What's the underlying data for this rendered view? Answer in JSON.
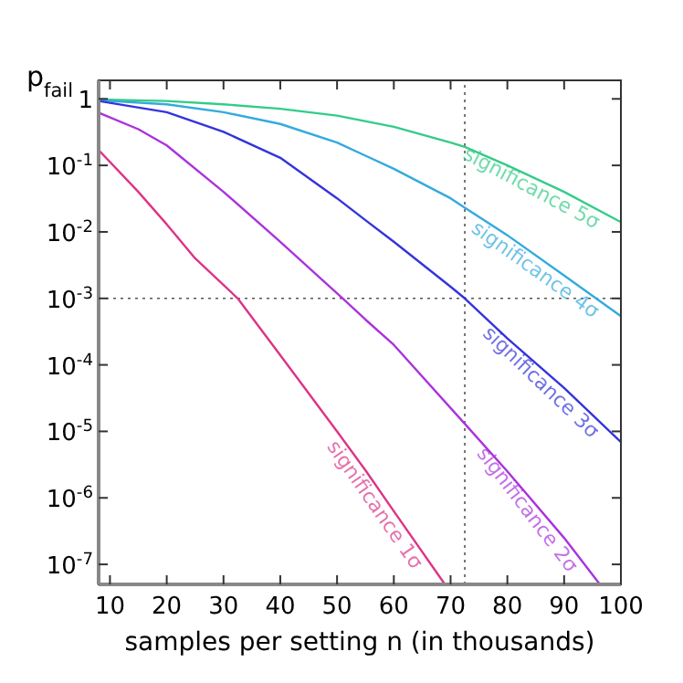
{
  "chart_data": {
    "type": "line",
    "xlabel": "samples per setting n (in thousands)",
    "ylabel": "p$_{fail}$",
    "log": "y",
    "xlim": [
      8,
      100
    ],
    "ylim": [
      5e-08,
      1.9
    ],
    "xticks": [
      10,
      20,
      30,
      40,
      50,
      60,
      70,
      80,
      90,
      100
    ],
    "yticks": [
      {
        "value": 1,
        "label": "1"
      },
      {
        "value": 0.1,
        "label": "10$^{-1}$"
      },
      {
        "value": 0.01,
        "label": "10$^{-2}$"
      },
      {
        "value": 0.001,
        "label": "10$^{-3}$"
      },
      {
        "value": 0.0001,
        "label": "10$^{-4}$"
      },
      {
        "value": 1e-05,
        "label": "10$^{-5}$"
      },
      {
        "value": 1e-06,
        "label": "10$^{-6}$"
      },
      {
        "value": 1e-07,
        "label": "10$^{-7}$"
      }
    ],
    "grid": false,
    "marker": "none",
    "line_style": "solid",
    "ref_lines": [
      {
        "axis": "x",
        "value": 72.5,
        "color": "#555555",
        "line_style": "dotted"
      },
      {
        "axis": "y",
        "value": 0.001,
        "color": "#555555",
        "line_style": "dotted"
      }
    ],
    "series": [
      {
        "name": "significance 5σ",
        "color": "#33cc88",
        "x": [
          8,
          20,
          30,
          40,
          50,
          60,
          70,
          72.5,
          80,
          90,
          100
        ],
        "values": [
          0.98,
          0.93,
          0.83,
          0.71,
          0.56,
          0.38,
          0.22,
          0.19,
          0.1,
          0.04,
          0.014
        ]
      },
      {
        "name": "significance 4σ",
        "color": "#33aadd",
        "x": [
          8,
          20,
          30,
          40,
          50,
          55,
          60,
          70,
          72.5,
          80,
          90,
          100
        ],
        "values": [
          0.95,
          0.83,
          0.63,
          0.42,
          0.22,
          0.14,
          0.089,
          0.032,
          0.023,
          0.0089,
          0.0022,
          0.00054
        ]
      },
      {
        "name": "significance 3σ",
        "color": "#3333dd",
        "x": [
          8,
          20,
          30,
          40,
          50,
          55,
          60,
          70,
          72.5,
          80,
          90,
          100
        ],
        "values": [
          0.93,
          0.63,
          0.32,
          0.13,
          0.032,
          0.015,
          0.0071,
          0.0015,
          0.001,
          0.00025,
          4.5e-05,
          6.9e-06
        ]
      },
      {
        "name": "significance 2σ",
        "color": "#aa33dd",
        "x": [
          8,
          15,
          20,
          30,
          40,
          51,
          55,
          60,
          72.5,
          80,
          90,
          96.3
        ],
        "values": [
          0.62,
          0.35,
          0.2,
          0.04,
          0.0071,
          0.001,
          0.00048,
          0.0002,
          1.3e-05,
          2.5e-06,
          2.5e-07,
          5e-08
        ]
      },
      {
        "name": "significance 1σ",
        "color": "#dd3388",
        "x": [
          8,
          15,
          20,
          25,
          32.5,
          40,
          50,
          55,
          60,
          69
        ],
        "values": [
          0.17,
          0.04,
          0.013,
          0.004,
          0.001,
          0.00014,
          1e-05,
          2.6e-06,
          6.3e-07,
          5e-08
        ]
      }
    ]
  }
}
